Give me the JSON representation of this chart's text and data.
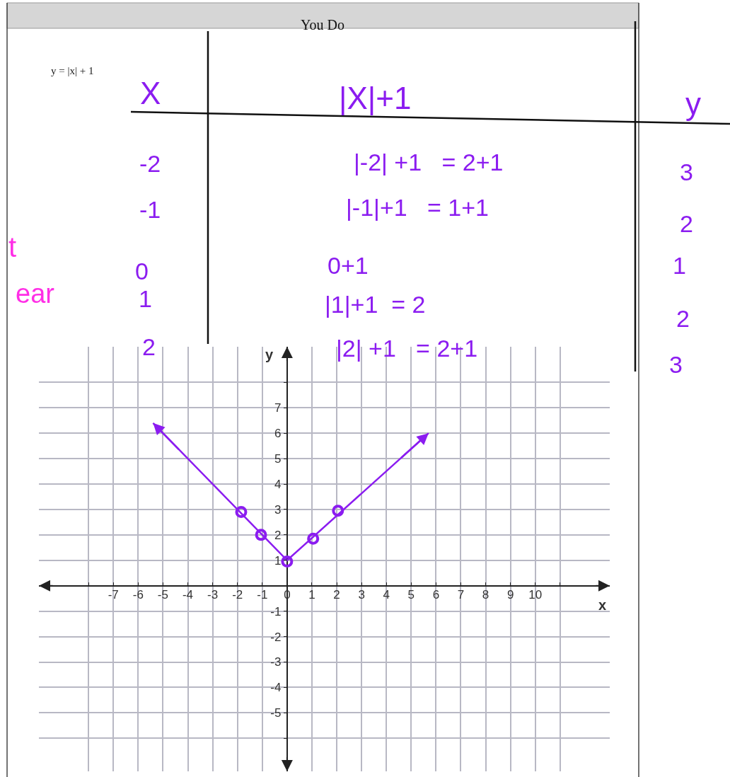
{
  "chart_data": {
    "type": "line",
    "title": "You Do",
    "xlabel": "x",
    "ylabel": "y",
    "annotations": [
      "y = |x| + 1",
      "X",
      "|X|+1",
      "y",
      "-2",
      "-1",
      "0",
      "1",
      "2",
      "|-2| +1   = 2+1",
      "|-1|+1   = 1+1",
      "0+1",
      "|1|+1  = 2",
      "|2| +1   = 2+1",
      "3",
      "2",
      "1",
      "2",
      "3",
      "t",
      "ear"
    ],
    "series": [
      {
        "color": "#8b1cf0",
        "x": [
          -5.4,
          0,
          5.7
        ],
        "values": [
          6.4,
          1,
          6.0
        ],
        "marker": "none"
      },
      {
        "type": "scatter",
        "color": "#8b1cf0",
        "x": [
          -1.85,
          -1.05,
          0,
          1.05,
          2.05
        ],
        "values": [
          2.9,
          2.0,
          0.95,
          1.85,
          2.95
        ],
        "marker": "circle"
      }
    ],
    "xlim": [
      -10,
      13
    ],
    "ylim": [
      -7.3,
      9.4
    ],
    "xticks": [
      {
        "value": -8,
        "label": null
      },
      -7,
      -6,
      -5,
      -4,
      -3,
      -2,
      -1,
      0,
      1,
      2,
      3,
      4,
      5,
      6,
      7,
      8,
      9,
      10,
      {
        "value": 11,
        "label": null
      }
    ],
    "yticks": [
      {
        "value": -6,
        "label": null
      },
      -5,
      -4,
      -3,
      -2,
      -1,
      1,
      2,
      3,
      4,
      5,
      6,
      7,
      {
        "value": 8,
        "label": null
      }
    ],
    "grid": true
  }
}
